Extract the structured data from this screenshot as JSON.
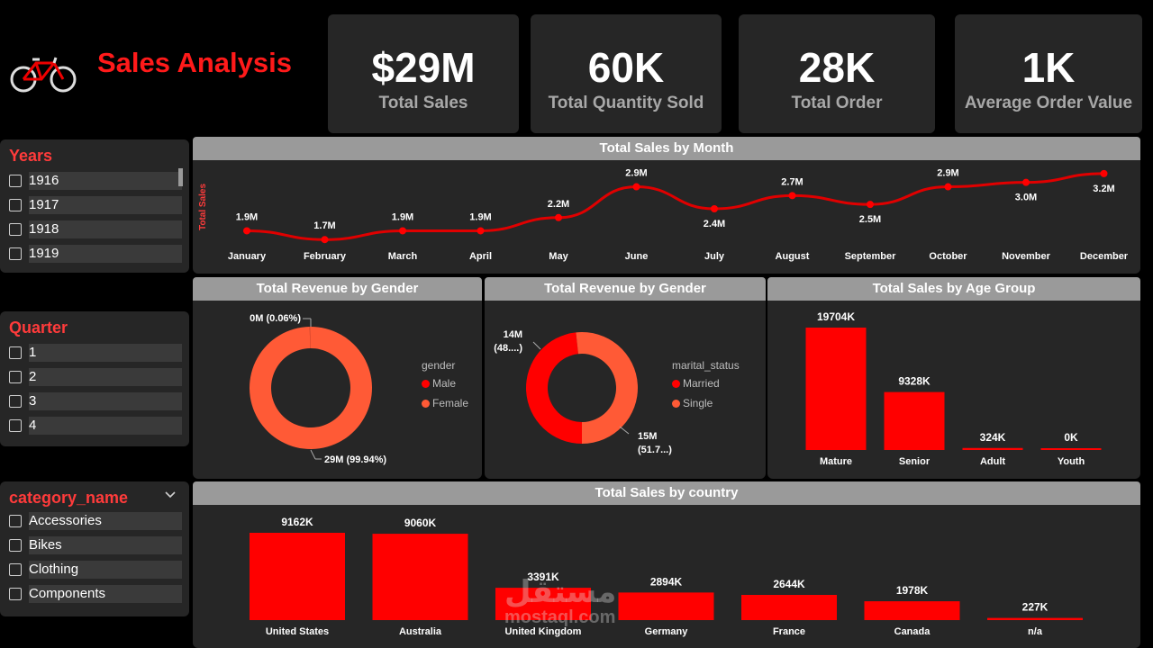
{
  "header": {
    "title": "Sales Analysis",
    "logo_icon": "bicycle-icon"
  },
  "colors": {
    "accent": "#ff0000",
    "accent_light": "#ff5a36",
    "panel": "#262626",
    "title_bar": "#9a9a9a"
  },
  "kpis": [
    {
      "value": "$29M",
      "label": "Total Sales"
    },
    {
      "value": "60K",
      "label": "Total Quantity Sold"
    },
    {
      "value": "28K",
      "label": "Total Order"
    },
    {
      "value": "1K",
      "label": "Average Order Value"
    }
  ],
  "slicers": {
    "years": {
      "title": "Years",
      "items": [
        "1916",
        "1917",
        "1918",
        "1919"
      ]
    },
    "quarter": {
      "title": "Quarter",
      "items": [
        "1",
        "2",
        "3",
        "4"
      ]
    },
    "category": {
      "title": "category_name",
      "items": [
        "Accessories",
        "Bikes",
        "Clothing",
        "Components"
      ]
    }
  },
  "charts": {
    "month_title": "Total Sales by Month",
    "month_ylabel": "Total Sales",
    "gender_title": "Total Revenue by Gender",
    "gender_legend_title": "gender",
    "gender_legend": [
      "Male",
      "Female"
    ],
    "gender_labels": [
      "0M (0.06%)",
      "29M (99.94%)"
    ],
    "marital_title": "Total Revenue by Gender",
    "marital_legend_title": "marital_status",
    "marital_legend": [
      "Married",
      "Single"
    ],
    "marital_labels_top": [
      "14M",
      "(48....)"
    ],
    "marital_labels_bottom": [
      "15M",
      "(51.7...)"
    ],
    "age_title": "Total Sales by Age Group",
    "country_title": "Total Sales by country"
  },
  "chart_data": [
    {
      "type": "line",
      "title": "Total Sales by Month",
      "ylabel": "Total Sales",
      "categories": [
        "January",
        "February",
        "March",
        "April",
        "May",
        "June",
        "July",
        "August",
        "September",
        "October",
        "November",
        "December"
      ],
      "values": [
        1.9,
        1.7,
        1.9,
        1.9,
        2.2,
        2.9,
        2.4,
        2.7,
        2.5,
        2.9,
        3.0,
        3.2
      ],
      "labels": [
        "1.9M",
        "1.7M",
        "1.9M",
        "1.9M",
        "2.2M",
        "2.9M",
        "2.4M",
        "2.7M",
        "2.5M",
        "2.9M",
        "3.0M",
        "3.2M"
      ],
      "unit": "M"
    },
    {
      "type": "pie",
      "title": "Total Revenue by Gender",
      "categories": [
        "Male",
        "Female"
      ],
      "values": [
        0.06,
        99.94
      ]
    },
    {
      "type": "pie",
      "title": "Total Revenue by Gender",
      "categories": [
        "Married",
        "Single"
      ],
      "values": [
        48.3,
        51.7
      ]
    },
    {
      "type": "bar",
      "title": "Total Sales by Age Group",
      "categories": [
        "Mature",
        "Senior",
        "Adult",
        "Youth"
      ],
      "values": [
        19704,
        9328,
        324,
        0
      ],
      "labels": [
        "19704K",
        "9328K",
        "324K",
        "0K"
      ]
    },
    {
      "type": "bar",
      "title": "Total Sales by country",
      "categories": [
        "United States",
        "Australia",
        "United Kingdom",
        "Germany",
        "France",
        "Canada",
        "n/a"
      ],
      "values": [
        9162,
        9060,
        3391,
        2894,
        2644,
        1978,
        227
      ],
      "labels": [
        "9162K",
        "9060K",
        "3391K",
        "2894K",
        "2644K",
        "1978K",
        "227K"
      ]
    }
  ],
  "watermark": {
    "arabic": "مستقل",
    "latin": "mostaql.com"
  }
}
